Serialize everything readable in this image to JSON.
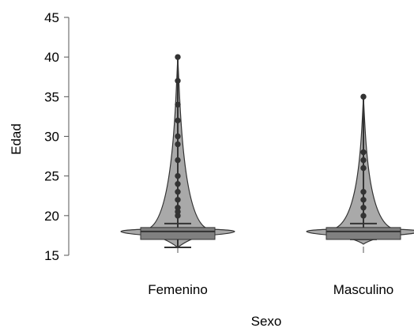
{
  "chart_data": {
    "type": "violin-box-dot",
    "xlabel": "Sexo",
    "ylabel": "Edad",
    "ylim": [
      15,
      45
    ],
    "yticks": [
      15,
      20,
      25,
      30,
      35,
      40,
      45
    ],
    "grid": false,
    "legend": "none",
    "categories": [
      "Femenino",
      "Masculino"
    ],
    "groups": [
      {
        "category": "Femenino",
        "box": {
          "q1": 17,
          "median": 18,
          "q3": 18.5,
          "whisker_low": 16,
          "whisker_high": 19
        },
        "outliers": [
          20,
          20.5,
          21,
          22,
          23,
          24,
          25,
          27,
          29,
          30,
          32,
          34,
          37,
          40
        ]
      },
      {
        "category": "Masculino",
        "box": {
          "q1": 17,
          "median": 18,
          "q3": 18.5,
          "whisker_low": 17,
          "whisker_high": 19
        },
        "outliers": [
          20,
          21,
          22,
          23,
          26,
          27,
          28,
          35
        ]
      }
    ],
    "colors": {
      "violin_fill": "#a9a9a9",
      "box_fill": "#808080",
      "stroke": "#333333",
      "points": "#333333",
      "axis": "#555555"
    }
  }
}
